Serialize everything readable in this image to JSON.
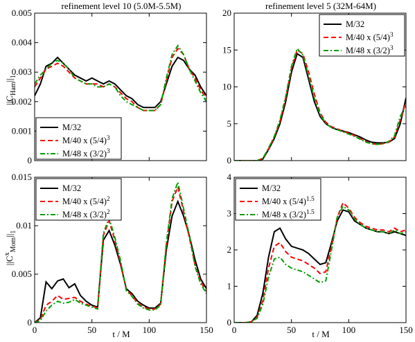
{
  "figure": {
    "col_titles": [
      "refinement level 10 (5.0M-5.5M)",
      "refinement level 5 (32M-64M)"
    ],
    "xlabel": "t / M",
    "ylabel_top": "||C",
    "ylabel_top_sub": "Ham",
    "ylabel_top_tail": "||",
    "ylabel_top_sub2": "1",
    "ylabel_bottom": "||C",
    "ylabel_bottom_sup": "x",
    "ylabel_bottom_sub": "Mom",
    "ylabel_bottom_tail": "||",
    "ylabel_bottom_sub2": "1"
  },
  "colors": {
    "M/32": "#000000",
    "M/40": "#ff0000",
    "M/48": "#00a000"
  },
  "chart_data": [
    {
      "id": "tl",
      "type": "line",
      "xlim": [
        0,
        150
      ],
      "ylim": [
        0,
        0.005
      ],
      "xticks": [
        0,
        50,
        100,
        150
      ],
      "yticks": [
        0,
        0.001,
        0.002,
        0.003,
        0.004,
        0.005
      ],
      "ytick_labels": [
        "0",
        "0.001",
        "0.002",
        "0.003",
        "0.004",
        "0.005"
      ],
      "show_xtick_labels": false,
      "legend_position": "bottom-left",
      "series": [
        {
          "name": "M/32",
          "sup": "",
          "x": [
            0,
            5,
            10,
            15,
            20,
            25,
            30,
            35,
            40,
            45,
            50,
            55,
            60,
            65,
            70,
            75,
            80,
            85,
            90,
            95,
            100,
            105,
            110,
            115,
            120,
            125,
            130,
            135,
            140,
            145,
            150
          ],
          "y": [
            0.0022,
            0.0026,
            0.0032,
            0.0033,
            0.0035,
            0.0033,
            0.0031,
            0.0029,
            0.0028,
            0.0027,
            0.0028,
            0.0027,
            0.0026,
            0.0027,
            0.0026,
            0.0024,
            0.0022,
            0.0021,
            0.0019,
            0.0018,
            0.0018,
            0.0018,
            0.002,
            0.0026,
            0.0032,
            0.0035,
            0.0034,
            0.0031,
            0.0029,
            0.0025,
            0.0022
          ]
        },
        {
          "name": "M/40 x (5/4)",
          "sup": "3",
          "x": [
            0,
            5,
            10,
            15,
            20,
            25,
            30,
            35,
            40,
            45,
            50,
            55,
            60,
            65,
            70,
            75,
            80,
            85,
            90,
            95,
            100,
            105,
            110,
            115,
            120,
            125,
            130,
            135,
            140,
            145,
            150
          ],
          "y": [
            0.0025,
            0.0028,
            0.0031,
            0.0032,
            0.0033,
            0.0032,
            0.003,
            0.0028,
            0.0027,
            0.0026,
            0.0026,
            0.0026,
            0.0025,
            0.0026,
            0.0025,
            0.0023,
            0.0021,
            0.002,
            0.0018,
            0.0017,
            0.0017,
            0.0017,
            0.0019,
            0.0027,
            0.0035,
            0.0038,
            0.0036,
            0.0031,
            0.0028,
            0.0024,
            0.0021
          ]
        },
        {
          "name": "M/48 x (3/2)",
          "sup": "3",
          "x": [
            0,
            5,
            10,
            15,
            20,
            25,
            30,
            35,
            40,
            45,
            50,
            55,
            60,
            65,
            70,
            75,
            80,
            85,
            90,
            95,
            100,
            105,
            110,
            115,
            120,
            125,
            130,
            135,
            140,
            145,
            150
          ],
          "y": [
            0.0026,
            0.0029,
            0.0031,
            0.0033,
            0.0034,
            0.0033,
            0.0031,
            0.0028,
            0.0027,
            0.0026,
            0.0026,
            0.0025,
            0.0025,
            0.0026,
            0.0025,
            0.0022,
            0.002,
            0.0019,
            0.0018,
            0.0017,
            0.0017,
            0.0017,
            0.0019,
            0.0028,
            0.0036,
            0.0039,
            0.0036,
            0.0031,
            0.0027,
            0.0023,
            0.002
          ]
        }
      ]
    },
    {
      "id": "tr",
      "type": "line",
      "xlim": [
        0,
        150
      ],
      "ylim": [
        0,
        20
      ],
      "xticks": [
        0,
        50,
        100,
        150
      ],
      "yticks": [
        0,
        5,
        10,
        15,
        20
      ],
      "ytick_labels": [
        "0",
        "5",
        "10",
        "15",
        "20"
      ],
      "show_xtick_labels": false,
      "legend_position": "top-right",
      "series": [
        {
          "name": "M/32",
          "sup": "",
          "x": [
            0,
            10,
            20,
            25,
            30,
            35,
            40,
            45,
            50,
            55,
            60,
            65,
            70,
            75,
            80,
            85,
            90,
            95,
            100,
            105,
            110,
            115,
            120,
            125,
            130,
            135,
            140,
            145,
            150
          ],
          "y": [
            0,
            0,
            0,
            0.2,
            1.5,
            3,
            5,
            8,
            12,
            14.5,
            14,
            11,
            8,
            6,
            5,
            4.5,
            4.2,
            4,
            3.8,
            3.5,
            3.2,
            2.8,
            2.5,
            2.4,
            2.4,
            2.5,
            3,
            5,
            8.5
          ]
        },
        {
          "name": "M/40 x (5/4)",
          "sup": "3",
          "x": [
            0,
            10,
            20,
            25,
            30,
            35,
            40,
            45,
            50,
            55,
            60,
            65,
            70,
            75,
            80,
            85,
            90,
            95,
            100,
            105,
            110,
            115,
            120,
            125,
            130,
            135,
            140,
            145,
            150
          ],
          "y": [
            0,
            0,
            0,
            0.3,
            1.6,
            3.2,
            5.3,
            8.5,
            12.5,
            15,
            14.5,
            12,
            9,
            6.5,
            5.2,
            4.6,
            4.3,
            4,
            3.7,
            3.4,
            3,
            2.6,
            2.3,
            2.2,
            2.3,
            2.5,
            3.2,
            5.5,
            8
          ]
        },
        {
          "name": "M/48 x (3/2)",
          "sup": "3",
          "x": [
            0,
            10,
            20,
            25,
            30,
            35,
            40,
            45,
            50,
            55,
            60,
            65,
            70,
            75,
            80,
            85,
            90,
            95,
            100,
            105,
            110,
            115,
            120,
            125,
            130,
            135,
            140,
            145,
            150
          ],
          "y": [
            0,
            0,
            0,
            0.3,
            1.7,
            3.3,
            5.5,
            8.7,
            12.8,
            15.2,
            14.3,
            11.5,
            8.5,
            6.3,
            5,
            4.5,
            4.2,
            3.9,
            3.6,
            3.3,
            2.9,
            2.5,
            2.3,
            2.2,
            2.3,
            2.6,
            3.4,
            6,
            7.5
          ]
        }
      ]
    },
    {
      "id": "bl",
      "type": "line",
      "xlim": [
        0,
        150
      ],
      "ylim": [
        0,
        0.015
      ],
      "xticks": [
        0,
        50,
        100,
        150
      ],
      "yticks": [
        0,
        0.005,
        0.01,
        0.015
      ],
      "ytick_labels": [
        "0",
        "0.005",
        "0.01",
        "0.015"
      ],
      "show_xtick_labels": true,
      "legend_position": "top-left",
      "series": [
        {
          "name": "M/32",
          "sup": "",
          "x": [
            0,
            5,
            10,
            15,
            20,
            25,
            30,
            35,
            40,
            45,
            50,
            55,
            60,
            65,
            70,
            75,
            80,
            85,
            90,
            95,
            100,
            105,
            110,
            115,
            120,
            125,
            130,
            135,
            140,
            145,
            150
          ],
          "y": [
            0,
            0.0005,
            0.0042,
            0.0035,
            0.0043,
            0.0045,
            0.0036,
            0.004,
            0.0028,
            0.0022,
            0.0018,
            0.0016,
            0.0085,
            0.0095,
            0.008,
            0.006,
            0.0035,
            0.003,
            0.0022,
            0.0018,
            0.0015,
            0.0015,
            0.002,
            0.0075,
            0.011,
            0.0125,
            0.011,
            0.009,
            0.0065,
            0.0045,
            0.0035
          ]
        },
        {
          "name": "M/40 x (5/4)",
          "sup": "2",
          "x": [
            0,
            5,
            10,
            15,
            20,
            25,
            30,
            35,
            40,
            45,
            50,
            55,
            60,
            65,
            70,
            75,
            80,
            85,
            90,
            95,
            100,
            105,
            110,
            115,
            120,
            125,
            130,
            135,
            140,
            145,
            150
          ],
          "y": [
            0,
            0.0003,
            0.0018,
            0.0022,
            0.0028,
            0.0024,
            0.0025,
            0.0026,
            0.0022,
            0.0019,
            0.0017,
            0.0015,
            0.009,
            0.0105,
            0.0085,
            0.0062,
            0.0034,
            0.0028,
            0.002,
            0.0016,
            0.0014,
            0.0014,
            0.0019,
            0.008,
            0.0125,
            0.014,
            0.0115,
            0.0088,
            0.006,
            0.0042,
            0.0032
          ]
        },
        {
          "name": "M/48 x (3/2)",
          "sup": "2",
          "x": [
            0,
            5,
            10,
            15,
            20,
            25,
            30,
            35,
            40,
            45,
            50,
            55,
            60,
            65,
            70,
            75,
            80,
            85,
            90,
            95,
            100,
            105,
            110,
            115,
            120,
            125,
            130,
            135,
            140,
            145,
            150
          ],
          "y": [
            0,
            0.0002,
            0.0012,
            0.0018,
            0.0022,
            0.002,
            0.0021,
            0.0024,
            0.002,
            0.0018,
            0.0016,
            0.0014,
            0.0092,
            0.0108,
            0.0088,
            0.0064,
            0.0033,
            0.0027,
            0.0019,
            0.0015,
            0.0013,
            0.0013,
            0.0018,
            0.0082,
            0.0128,
            0.0145,
            0.0118,
            0.009,
            0.0058,
            0.004,
            0.003
          ]
        }
      ]
    },
    {
      "id": "br",
      "type": "line",
      "xlim": [
        0,
        150
      ],
      "ylim": [
        0,
        4
      ],
      "xticks": [
        0,
        50,
        100,
        150
      ],
      "yticks": [
        0,
        1,
        2,
        3,
        4
      ],
      "ytick_labels": [
        "0",
        "1",
        "2",
        "3",
        "4"
      ],
      "show_xtick_labels": true,
      "legend_position": "top-left",
      "series": [
        {
          "name": "M/32",
          "sup": "",
          "x": [
            0,
            10,
            15,
            20,
            25,
            30,
            35,
            40,
            45,
            50,
            55,
            60,
            65,
            70,
            75,
            80,
            85,
            90,
            95,
            100,
            105,
            110,
            115,
            120,
            125,
            130,
            135,
            140,
            145,
            150
          ],
          "y": [
            0,
            0,
            0.02,
            0.2,
            0.8,
            1.8,
            2.5,
            2.6,
            2.3,
            2.1,
            2.05,
            2,
            1.9,
            1.75,
            1.6,
            1.65,
            2.2,
            2.8,
            3.1,
            3.05,
            2.8,
            2.7,
            2.6,
            2.55,
            2.5,
            2.5,
            2.45,
            2.5,
            2.45,
            2.4
          ]
        },
        {
          "name": "M/40 x (5/4)",
          "sup": "1.5",
          "x": [
            0,
            10,
            15,
            20,
            25,
            30,
            35,
            40,
            45,
            50,
            55,
            60,
            65,
            70,
            75,
            80,
            85,
            90,
            95,
            100,
            105,
            110,
            115,
            120,
            125,
            130,
            135,
            140,
            145,
            150
          ],
          "y": [
            0,
            0,
            0.02,
            0.15,
            0.6,
            1.5,
            2.1,
            2.2,
            1.95,
            1.8,
            1.75,
            1.7,
            1.6,
            1.5,
            1.35,
            1.4,
            2.1,
            2.9,
            3.3,
            3.15,
            2.9,
            2.75,
            2.65,
            2.6,
            2.55,
            2.55,
            2.5,
            2.6,
            2.5,
            2.55
          ]
        },
        {
          "name": "M/48 x (3/2)",
          "sup": "1.5",
          "x": [
            0,
            10,
            15,
            20,
            25,
            30,
            35,
            40,
            45,
            50,
            55,
            60,
            65,
            70,
            75,
            80,
            85,
            90,
            95,
            100,
            105,
            110,
            115,
            120,
            125,
            130,
            135,
            140,
            145,
            150
          ],
          "y": [
            0,
            0,
            0.02,
            0.12,
            0.5,
            1.25,
            1.75,
            1.8,
            1.6,
            1.5,
            1.45,
            1.4,
            1.3,
            1.2,
            1.1,
            1.15,
            2,
            2.9,
            3.2,
            3.1,
            2.85,
            2.7,
            2.6,
            2.55,
            2.5,
            2.5,
            2.45,
            2.55,
            2.45,
            2.5
          ]
        }
      ]
    }
  ]
}
